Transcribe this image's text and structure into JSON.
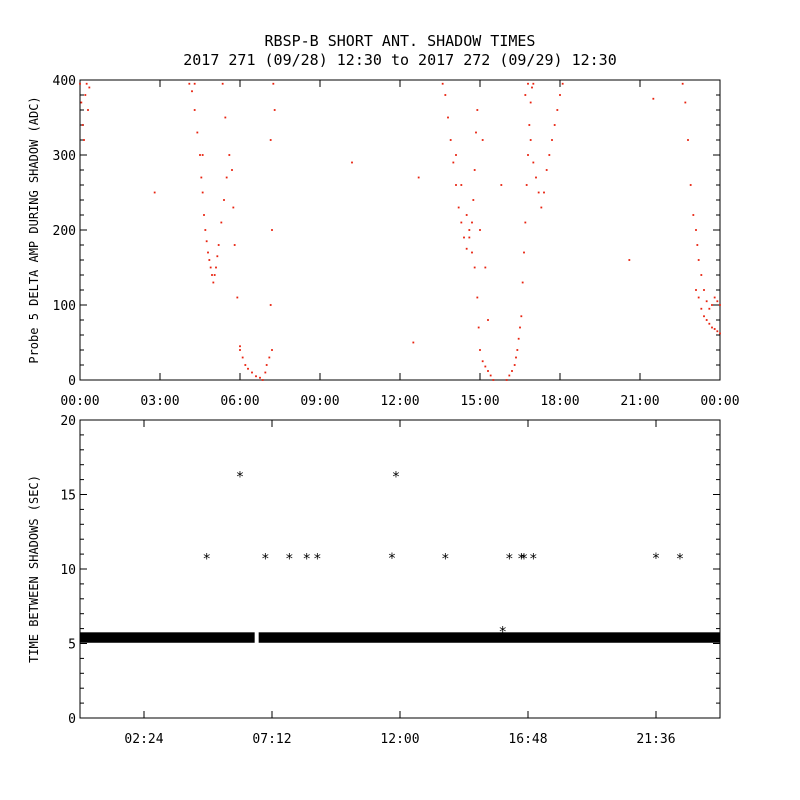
{
  "chart_data": [
    {
      "type": "scatter",
      "title": "RBSP-B SHORT ANT. SHADOW TIMES",
      "subtitle": "2017 271 (09/28) 12:30 to 2017 272 (09/29) 12:30",
      "xlabel": "",
      "ylabel": "Probe 5 DELTA AMP DURING SHADOW (ADC)",
      "xlim": [
        0,
        24
      ],
      "ylim": [
        0,
        400
      ],
      "x_unit": "hours",
      "xticks": [
        "00:00",
        "03:00",
        "06:00",
        "09:00",
        "12:00",
        "15:00",
        "18:00",
        "21:00",
        "00:00"
      ],
      "yticks": [
        "0",
        "100",
        "200",
        "300",
        "400"
      ],
      "grid": false,
      "color": "#e8210d",
      "series": [
        {
          "points": [
            [
              0.0,
              395
            ],
            [
              0.05,
              370
            ],
            [
              0.1,
              340
            ],
            [
              0.15,
              320
            ],
            [
              0.2,
              380
            ],
            [
              0.25,
              395
            ],
            [
              0.3,
              360
            ],
            [
              0.35,
              390
            ],
            [
              4.1,
              395
            ],
            [
              4.2,
              385
            ],
            [
              4.3,
              360
            ],
            [
              4.4,
              330
            ],
            [
              4.5,
              300
            ],
            [
              4.55,
              270
            ],
            [
              4.6,
              250
            ],
            [
              4.65,
              220
            ],
            [
              4.7,
              200
            ],
            [
              4.75,
              185
            ],
            [
              4.8,
              170
            ],
            [
              4.85,
              160
            ],
            [
              4.9,
              150
            ],
            [
              4.95,
              140
            ],
            [
              5.0,
              130
            ],
            [
              5.05,
              140
            ],
            [
              5.1,
              150
            ],
            [
              5.15,
              165
            ],
            [
              5.2,
              180
            ],
            [
              5.3,
              210
            ],
            [
              5.4,
              240
            ],
            [
              5.5,
              270
            ],
            [
              5.6,
              300
            ],
            [
              5.7,
              280
            ],
            [
              5.75,
              230
            ],
            [
              5.8,
              180
            ],
            [
              5.9,
              110
            ],
            [
              6.0,
              45
            ],
            [
              4.3,
              395
            ],
            [
              4.6,
              300
            ],
            [
              5.35,
              395
            ],
            [
              5.45,
              350
            ],
            [
              6.0,
              40
            ],
            [
              6.1,
              30
            ],
            [
              6.2,
              20
            ],
            [
              6.3,
              15
            ],
            [
              6.45,
              10
            ],
            [
              6.6,
              5
            ],
            [
              6.75,
              3
            ],
            [
              6.85,
              0
            ],
            [
              6.95,
              10
            ],
            [
              7.0,
              20
            ],
            [
              7.1,
              30
            ],
            [
              7.2,
              40
            ],
            [
              7.25,
              395
            ],
            [
              7.3,
              360
            ],
            [
              7.15,
              320
            ],
            [
              7.2,
              200
            ],
            [
              7.15,
              100
            ],
            [
              2.8,
              250
            ],
            [
              10.2,
              290
            ],
            [
              12.5,
              50
            ],
            [
              12.7,
              270
            ],
            [
              13.6,
              395
            ],
            [
              13.7,
              380
            ],
            [
              13.8,
              350
            ],
            [
              13.9,
              320
            ],
            [
              14.0,
              290
            ],
            [
              14.1,
              260
            ],
            [
              14.2,
              230
            ],
            [
              14.3,
              210
            ],
            [
              14.4,
              190
            ],
            [
              14.5,
              175
            ],
            [
              14.6,
              190
            ],
            [
              14.7,
              210
            ],
            [
              14.75,
              240
            ],
            [
              14.8,
              280
            ],
            [
              14.85,
              330
            ],
            [
              14.9,
              360
            ],
            [
              14.1,
              300
            ],
            [
              14.3,
              260
            ],
            [
              14.5,
              220
            ],
            [
              14.6,
              200
            ],
            [
              14.7,
              170
            ],
            [
              14.8,
              150
            ],
            [
              14.9,
              110
            ],
            [
              14.95,
              70
            ],
            [
              15.0,
              40
            ],
            [
              15.1,
              25
            ],
            [
              15.2,
              18
            ],
            [
              15.3,
              12
            ],
            [
              15.4,
              6
            ],
            [
              15.5,
              0
            ],
            [
              15.1,
              320
            ],
            [
              15.2,
              150
            ],
            [
              15.3,
              80
            ],
            [
              15.0,
              200
            ],
            [
              16.0,
              0
            ],
            [
              16.1,
              6
            ],
            [
              16.2,
              12
            ],
            [
              16.3,
              20
            ],
            [
              16.35,
              30
            ],
            [
              16.4,
              40
            ],
            [
              16.45,
              55
            ],
            [
              16.5,
              70
            ],
            [
              16.55,
              85
            ],
            [
              16.6,
              130
            ],
            [
              16.65,
              170
            ],
            [
              16.7,
              210
            ],
            [
              16.75,
              260
            ],
            [
              16.8,
              300
            ],
            [
              16.85,
              340
            ],
            [
              16.9,
              370
            ],
            [
              16.95,
              390
            ],
            [
              17.0,
              395
            ],
            [
              16.9,
              320
            ],
            [
              17.0,
              290
            ],
            [
              17.1,
              270
            ],
            [
              17.2,
              250
            ],
            [
              17.3,
              230
            ],
            [
              17.4,
              250
            ],
            [
              17.5,
              280
            ],
            [
              17.6,
              300
            ],
            [
              17.7,
              320
            ],
            [
              17.8,
              340
            ],
            [
              17.9,
              360
            ],
            [
              18.0,
              380
            ],
            [
              18.1,
              395
            ],
            [
              16.7,
              380
            ],
            [
              16.8,
              395
            ],
            [
              15.8,
              260
            ],
            [
              20.6,
              160
            ],
            [
              21.5,
              375
            ],
            [
              22.6,
              395
            ],
            [
              22.7,
              370
            ],
            [
              22.8,
              320
            ],
            [
              22.9,
              260
            ],
            [
              23.0,
              220
            ],
            [
              23.1,
              200
            ],
            [
              23.15,
              180
            ],
            [
              23.2,
              160
            ],
            [
              23.3,
              140
            ],
            [
              23.4,
              120
            ],
            [
              23.5,
              105
            ],
            [
              23.6,
              95
            ],
            [
              23.7,
              100
            ],
            [
              23.8,
              110
            ],
            [
              23.9,
              105
            ],
            [
              24.0,
              100
            ],
            [
              23.1,
              120
            ],
            [
              23.2,
              110
            ],
            [
              23.3,
              95
            ],
            [
              23.4,
              85
            ],
            [
              23.5,
              80
            ],
            [
              23.6,
              75
            ],
            [
              23.7,
              70
            ],
            [
              23.8,
              68
            ],
            [
              23.9,
              65
            ],
            [
              24.0,
              62
            ]
          ]
        }
      ]
    },
    {
      "type": "scatter",
      "title": "",
      "xlabel": "",
      "ylabel": "TIME BETWEEN SHADOWS (SEC)",
      "xlim": [
        0,
        24
      ],
      "ylim": [
        0,
        20
      ],
      "x_unit": "hours",
      "xticks": [
        "02:24",
        "07:12",
        "12:00",
        "16:48",
        "21:36"
      ],
      "yticks": [
        "0",
        "5",
        "10",
        "15",
        "20"
      ],
      "grid": false,
      "marker": "*",
      "color": "#000000",
      "baseline": {
        "value": 5.4,
        "x_range": [
          0,
          24
        ],
        "gap_hours": [
          6.55,
          6.7
        ]
      },
      "series": [
        {
          "points": [
            [
              4.75,
              10.7
            ],
            [
              6.0,
              16.2
            ],
            [
              6.95,
              10.7
            ],
            [
              7.85,
              10.7
            ],
            [
              8.5,
              10.7
            ],
            [
              8.9,
              10.7
            ],
            [
              11.7,
              10.75
            ],
            [
              11.85,
              16.2
            ],
            [
              13.7,
              10.7
            ],
            [
              16.1,
              10.7
            ],
            [
              16.55,
              10.7
            ],
            [
              16.65,
              10.7
            ],
            [
              17.0,
              10.7
            ],
            [
              21.6,
              10.75
            ],
            [
              22.5,
              10.7
            ],
            [
              15.85,
              5.8
            ]
          ]
        }
      ]
    }
  ]
}
